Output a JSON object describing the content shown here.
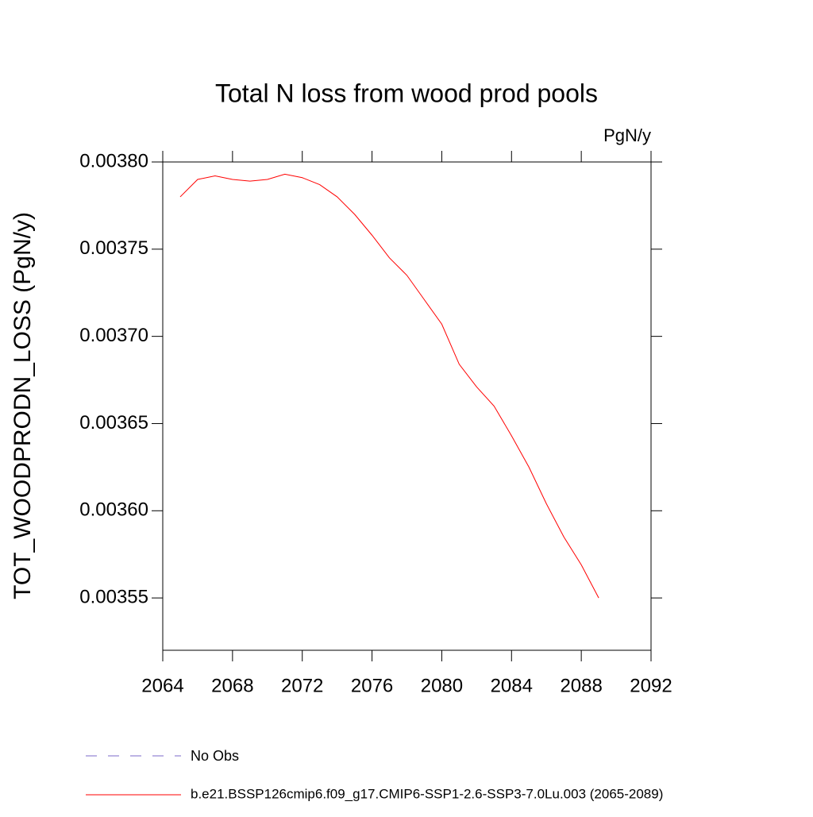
{
  "chart_data": {
    "type": "line",
    "title": "Total N loss from wood prod pools",
    "units": "PgN/y",
    "y_label": "TOT_WOODPRODN_LOSS  (PgN/y)",
    "x": [
      2065,
      2066,
      2067,
      2068,
      2069,
      2070,
      2071,
      2072,
      2073,
      2074,
      2075,
      2076,
      2077,
      2078,
      2079,
      2080,
      2081,
      2082,
      2083,
      2084,
      2085,
      2086,
      2087,
      2088,
      2089
    ],
    "series": [
      {
        "name": "b.e21.BSSP126cmip6.f09_g17.CMIP6-SSP1-2.6-SSP3-7.0Lu.003 (2065-2089)",
        "color": "#ff0000",
        "values": [
          0.00378,
          0.00379,
          0.003792,
          0.00379,
          0.003789,
          0.00379,
          0.003793,
          0.003791,
          0.003787,
          0.00378,
          0.00377,
          0.003758,
          0.003745,
          0.003735,
          0.003721,
          0.003707,
          0.003684,
          0.003671,
          0.00366,
          0.003643,
          0.003625,
          0.003604,
          0.003585,
          0.003569,
          0.00355
        ]
      }
    ],
    "reference_legend": {
      "name": "No Obs",
      "color": "#7b68c8",
      "dash": "dashed"
    },
    "xlim": [
      2064,
      2092
    ],
    "xticks": [
      2064,
      2068,
      2072,
      2076,
      2080,
      2084,
      2088,
      2092
    ],
    "ylim": [
      0.00352,
      0.0038
    ],
    "yticks": [
      {
        "value": 0.00355,
        "label": "0.00355"
      },
      {
        "value": 0.0036,
        "label": "0.00360"
      },
      {
        "value": 0.00365,
        "label": "0.00365"
      },
      {
        "value": 0.0037,
        "label": "0.00370"
      },
      {
        "value": 0.00375,
        "label": "0.00375"
      },
      {
        "value": 0.0038,
        "label": "0.00380"
      }
    ]
  }
}
